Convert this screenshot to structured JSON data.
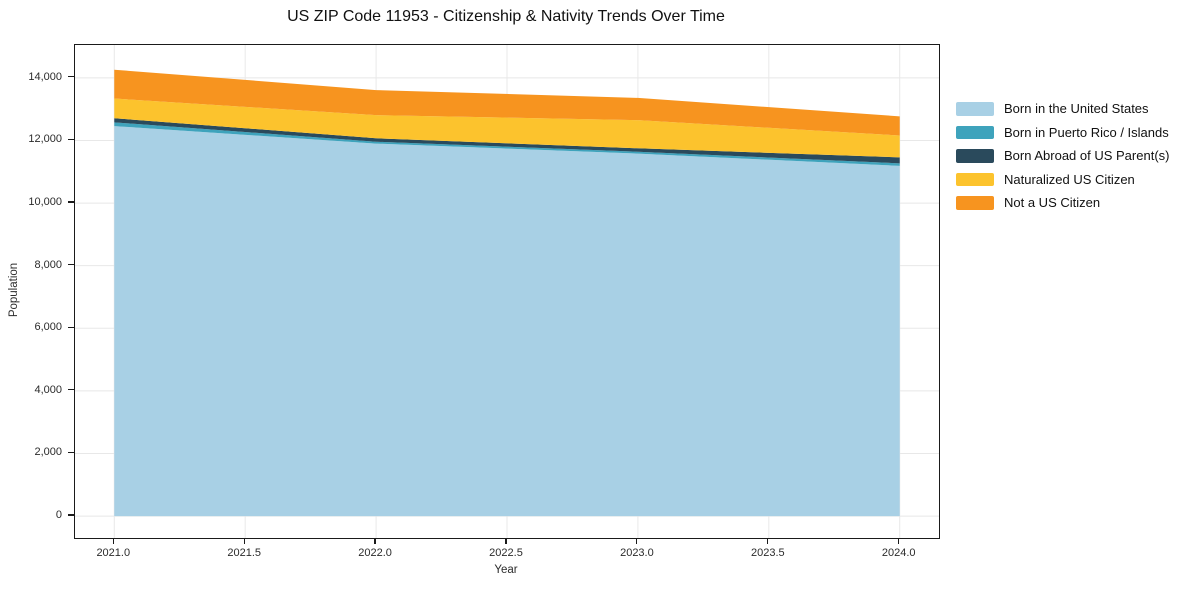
{
  "title": "US ZIP Code 11953 - Citizenship & Nativity Trends Over Time",
  "axes": {
    "xlabel": "Year",
    "ylabel": "Population",
    "x_ticks": [
      "2021.0",
      "2021.5",
      "2022.0",
      "2022.5",
      "2023.0",
      "2023.5",
      "2024.0"
    ],
    "x_tick_values": [
      2021.0,
      2021.5,
      2022.0,
      2022.5,
      2023.0,
      2023.5,
      2024.0
    ],
    "y_ticks": [
      "0",
      "2,000",
      "4,000",
      "6,000",
      "8,000",
      "10,000",
      "12,000",
      "14,000"
    ],
    "y_tick_values": [
      0,
      2000,
      4000,
      6000,
      8000,
      10000,
      12000,
      14000
    ]
  },
  "chart_data": {
    "type": "area",
    "stacked": true,
    "title": "US ZIP Code 11953 - Citizenship & Nativity Trends Over Time",
    "xlabel": "Year",
    "ylabel": "Population",
    "x": [
      2021,
      2022,
      2023,
      2024
    ],
    "series": [
      {
        "name": "Born in the United States",
        "color": "#a8d0e5",
        "values": [
          12460,
          11900,
          11580,
          11190
        ]
      },
      {
        "name": "Born in Puerto Rico / Islands",
        "color": "#3ea3bc",
        "values": [
          120,
          60,
          60,
          80
        ]
      },
      {
        "name": "Born Abroad of US Parent(s)",
        "color": "#2a4a5c",
        "values": [
          130,
          110,
          110,
          190
        ]
      },
      {
        "name": "Naturalized US Citizen",
        "color": "#fcc32d",
        "values": [
          630,
          740,
          900,
          700
        ]
      },
      {
        "name": "Not a US Citizen",
        "color": "#f7941f",
        "values": [
          920,
          800,
          710,
          610
        ]
      }
    ],
    "totals": [
      14260,
      13610,
      13360,
      12770
    ],
    "xlim": [
      2020.85,
      2024.15
    ],
    "ylim": [
      -700,
      15050
    ],
    "grid": true,
    "grid_color": "#e8e8e8",
    "legend_position": "right"
  }
}
